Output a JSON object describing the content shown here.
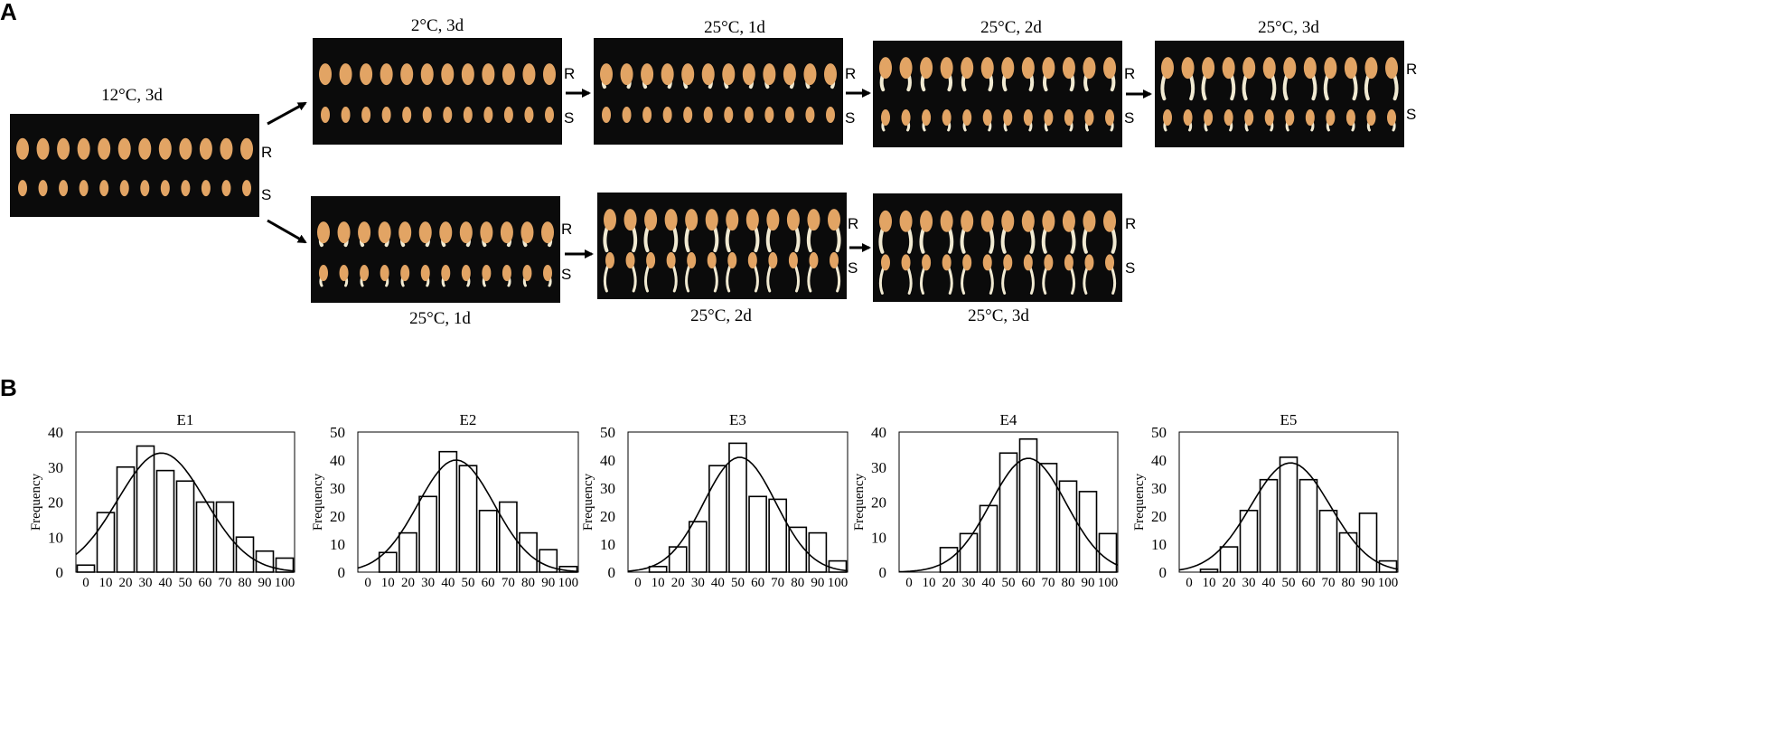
{
  "panel_a": {
    "letter": "A",
    "row_labels": {
      "r": "R",
      "s": "S"
    },
    "captions": {
      "start": "12°C, 3d",
      "cold": "2°C, 3d",
      "top_1d": "25°C, 1d",
      "top_2d": "25°C, 2d",
      "top_3d": "25°C, 3d",
      "bottom_1d": "25°C, 1d",
      "bottom_2d": "25°C, 2d",
      "bottom_3d": "25°C, 3d"
    },
    "photo_colors": {
      "background": "#0b0b0b",
      "seed": "#e2a464",
      "sprout": "#f1ead2"
    }
  },
  "panel_b": {
    "letter": "B"
  },
  "chart_data": [
    {
      "type": "bar",
      "title": "E1",
      "ylabel": "Frequency",
      "xlabel": "",
      "ylim": [
        0,
        40
      ],
      "yticks": [
        0,
        10,
        20,
        30,
        40
      ],
      "categories": [
        "0",
        "10",
        "20",
        "30",
        "40",
        "50",
        "60",
        "70",
        "80",
        "90",
        "100"
      ],
      "values": [
        2,
        17,
        30,
        36,
        29,
        26,
        20,
        20,
        10,
        6,
        4
      ],
      "fit_curve": {
        "type": "normal",
        "mean": 38,
        "sd": 22,
        "peak": 34
      }
    },
    {
      "type": "bar",
      "title": "E2",
      "ylabel": "Frequency",
      "xlabel": "",
      "ylim": [
        0,
        50
      ],
      "yticks": [
        0,
        10,
        20,
        30,
        40,
        50
      ],
      "categories": [
        "0",
        "10",
        "20",
        "30",
        "40",
        "50",
        "60",
        "70",
        "80",
        "90",
        "100"
      ],
      "values": [
        0,
        7,
        14,
        27,
        43,
        38,
        22,
        25,
        14,
        8,
        2
      ],
      "fit_curve": {
        "type": "normal",
        "mean": 44,
        "sd": 19,
        "peak": 40
      }
    },
    {
      "type": "bar",
      "title": "E3",
      "ylabel": "Frequency",
      "xlabel": "",
      "ylim": [
        0,
        50
      ],
      "yticks": [
        0,
        10,
        20,
        30,
        40,
        50
      ],
      "categories": [
        "0",
        "10",
        "20",
        "30",
        "40",
        "50",
        "60",
        "70",
        "80",
        "90",
        "100"
      ],
      "values": [
        0,
        2,
        9,
        18,
        38,
        46,
        27,
        26,
        16,
        14,
        4
      ],
      "fit_curve": {
        "type": "normal",
        "mean": 51,
        "sd": 18,
        "peak": 41
      }
    },
    {
      "type": "bar",
      "title": "E4",
      "ylabel": "Frequency",
      "xlabel": "",
      "ylim": [
        0,
        40
      ],
      "yticks": [
        0,
        10,
        20,
        30,
        40
      ],
      "categories": [
        "0",
        "10",
        "20",
        "30",
        "40",
        "50",
        "60",
        "70",
        "80",
        "90",
        "100"
      ],
      "values": [
        0,
        0,
        7,
        11,
        19,
        34,
        38,
        31,
        26,
        23,
        11
      ],
      "fit_curve": {
        "type": "normal",
        "mean": 60,
        "sd": 19,
        "peak": 32.5
      }
    },
    {
      "type": "bar",
      "title": "E5",
      "ylabel": "Frequency",
      "xlabel": "",
      "ylim": [
        0,
        50
      ],
      "yticks": [
        0,
        10,
        20,
        30,
        40,
        50
      ],
      "categories": [
        "0",
        "10",
        "20",
        "30",
        "40",
        "50",
        "60",
        "70",
        "80",
        "90",
        "100"
      ],
      "values": [
        0,
        1,
        9,
        22,
        33,
        41,
        33,
        22,
        14,
        21,
        4
      ],
      "fit_curve": {
        "type": "normal",
        "mean": 51,
        "sd": 20,
        "peak": 39
      }
    }
  ]
}
